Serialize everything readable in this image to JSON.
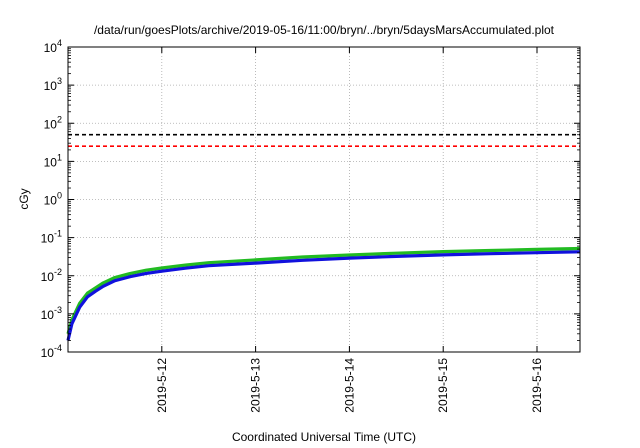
{
  "chart_data": {
    "type": "line",
    "title": "/data/run/goesPlots/archive/2019-05-16/11:00/bryn/../bryn/5daysMarsAccumulated.plot",
    "xlabel": "Coordinated Universal Time (UTC)",
    "ylabel": "cGy",
    "y_scale": "log",
    "ylim": [
      0.0001,
      10000
    ],
    "xlim": [
      "2019-05-11T00:00",
      "2019-05-16T11:00"
    ],
    "grid": true,
    "x_ticks": [
      "2019-5-12",
      "2019-5-13",
      "2019-5-14",
      "2019-5-15",
      "2019-5-16"
    ],
    "y_ticks": [
      {
        "base": "10",
        "exp": "-4",
        "value": 0.0001
      },
      {
        "base": "10",
        "exp": "-3",
        "value": 0.001
      },
      {
        "base": "10",
        "exp": "-2",
        "value": 0.01
      },
      {
        "base": "10",
        "exp": "-1",
        "value": 0.1
      },
      {
        "base": "10",
        "exp": "0",
        "value": 1
      },
      {
        "base": "10",
        "exp": "1",
        "value": 10
      },
      {
        "base": "10",
        "exp": "2",
        "value": 100
      },
      {
        "base": "10",
        "exp": "3",
        "value": 1000
      },
      {
        "base": "10",
        "exp": "4",
        "value": 10000
      }
    ],
    "reference_lines": [
      {
        "value": 50,
        "color": "#000000",
        "style": "dashed"
      },
      {
        "value": 25,
        "color": "#ff0000",
        "style": "dashed"
      }
    ],
    "series": [
      {
        "color": "#22bb22",
        "x": [
          "2019-05-11T00:00",
          "2019-05-11T01:00",
          "2019-05-11T03:00",
          "2019-05-11T05:00",
          "2019-05-11T07:00",
          "2019-05-11T09:00",
          "2019-05-11T12:00",
          "2019-05-11T16:00",
          "2019-05-11T20:00",
          "2019-05-12T00:00",
          "2019-05-12T06:00",
          "2019-05-12T12:00",
          "2019-05-13T00:00",
          "2019-05-13T12:00",
          "2019-05-14T00:00",
          "2019-05-14T12:00",
          "2019-05-15T00:00",
          "2019-05-15T12:00",
          "2019-05-16T00:00",
          "2019-05-16T11:00"
        ],
        "values": [
          0.0003,
          0.0007,
          0.0019,
          0.0035,
          0.0048,
          0.0065,
          0.009,
          0.0115,
          0.014,
          0.016,
          0.019,
          0.022,
          0.026,
          0.031,
          0.035,
          0.039,
          0.043,
          0.046,
          0.049,
          0.052
        ]
      },
      {
        "color": "#1111dd",
        "x": [
          "2019-05-11T00:00",
          "2019-05-11T01:00",
          "2019-05-11T03:00",
          "2019-05-11T05:00",
          "2019-05-11T07:00",
          "2019-05-11T09:00",
          "2019-05-11T12:00",
          "2019-05-11T16:00",
          "2019-05-11T20:00",
          "2019-05-12T00:00",
          "2019-05-12T06:00",
          "2019-05-12T12:00",
          "2019-05-13T00:00",
          "2019-05-13T12:00",
          "2019-05-14T00:00",
          "2019-05-14T12:00",
          "2019-05-15T00:00",
          "2019-05-15T12:00",
          "2019-05-16T00:00",
          "2019-05-16T11:00"
        ],
        "values": [
          0.0002,
          0.00055,
          0.0015,
          0.0028,
          0.0039,
          0.0053,
          0.0074,
          0.0095,
          0.0115,
          0.0132,
          0.0158,
          0.0183,
          0.0215,
          0.0255,
          0.029,
          0.0322,
          0.0352,
          0.0378,
          0.0402,
          0.0425
        ]
      }
    ]
  }
}
